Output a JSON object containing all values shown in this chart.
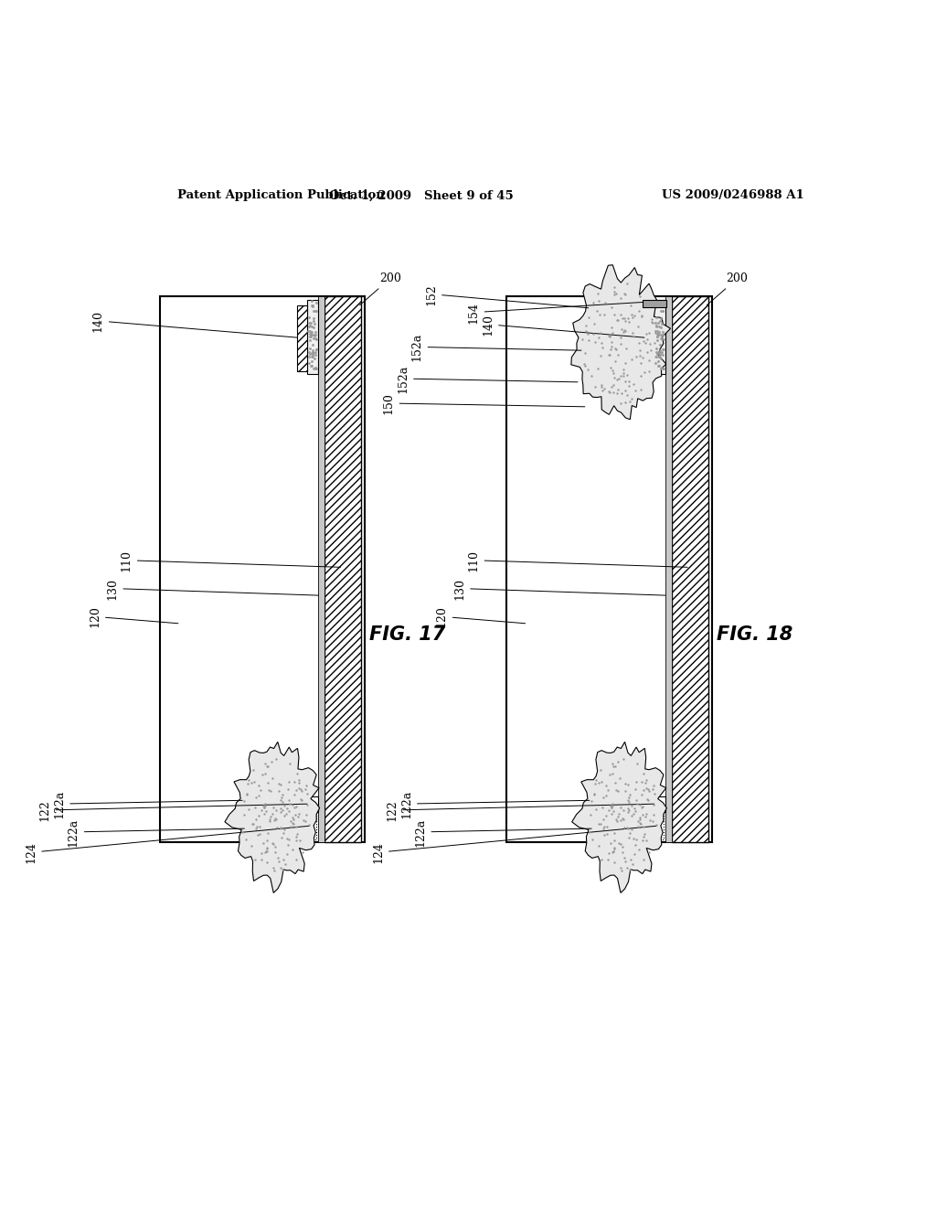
{
  "background_color": "#ffffff",
  "header_left": "Patent Application Publication",
  "header_mid": "Oct. 1, 2009   Sheet 9 of 45",
  "header_right": "US 2009/0246988 A1",
  "fig17_label": "FIG. 17",
  "fig18_label": "FIG. 18"
}
